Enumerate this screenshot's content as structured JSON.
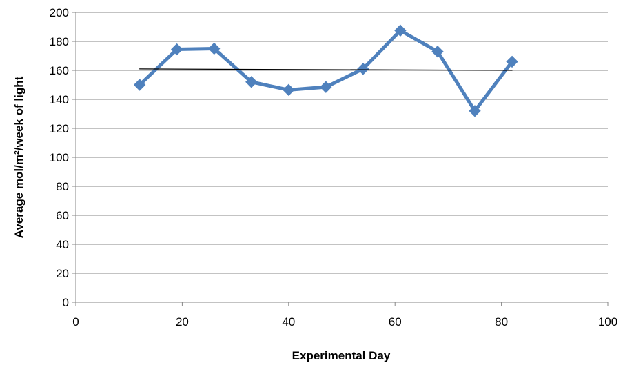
{
  "chart_data": {
    "type": "line",
    "title": "",
    "xlabel": "Experimental Day",
    "ylabel": "Average mol/m²/week of light",
    "xlim": [
      0,
      100
    ],
    "ylim": [
      0,
      200
    ],
    "x_ticks": [
      0,
      20,
      40,
      60,
      80,
      100
    ],
    "y_ticks": [
      0,
      20,
      40,
      60,
      80,
      100,
      120,
      140,
      160,
      180,
      200
    ],
    "grid": "horizontal",
    "legend": "none",
    "series": [
      {
        "color": "#4f81bd",
        "marker": "diamond",
        "x": [
          12,
          19,
          26,
          33,
          40,
          47,
          54,
          61,
          68,
          75,
          82
        ],
        "y": [
          150,
          174.5,
          175,
          152,
          146.5,
          148.5,
          161,
          187.5,
          173,
          132,
          166
        ]
      },
      {
        "color": "#000000",
        "marker": "none",
        "x": [
          12,
          82
        ],
        "y": [
          161,
          160
        ]
      }
    ]
  }
}
